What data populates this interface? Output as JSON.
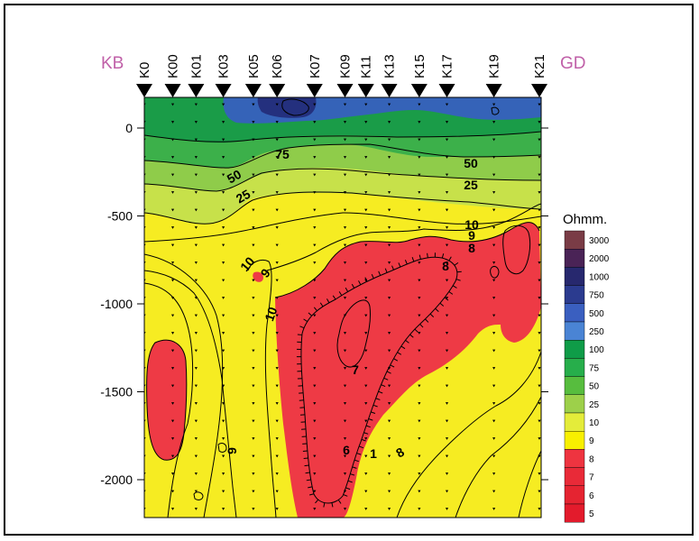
{
  "chart_data": {
    "type": "heatmap",
    "title": "",
    "xlabel": "",
    "ylabel": "",
    "end_labels": {
      "left": "KB",
      "right": "GD"
    },
    "stations": [
      "K0",
      "K00",
      "K01",
      "K03",
      "K05",
      "K06",
      "K07",
      "K09",
      "K11",
      "K13",
      "K15",
      "K17",
      "K19",
      "K21"
    ],
    "y_ticks": [
      0,
      -500,
      -1000,
      -1500,
      -2000
    ],
    "ylim": [
      -2200,
      180
    ],
    "legend": {
      "title": "Ohmm.",
      "levels": [
        "3000",
        "2000",
        "1000",
        "750",
        "500",
        "250",
        "100",
        "75",
        "50",
        "25",
        "10",
        "9",
        "8",
        "7",
        "6",
        "5"
      ],
      "colors": [
        "#7a3c46",
        "#4a2356",
        "#27286e",
        "#2b3b8f",
        "#3a5fc0",
        "#4a84d4",
        "#0f9c48",
        "#27ae4b",
        "#57bd3e",
        "#9dd04a",
        "#e4ec3a",
        "#f8f000",
        "#ee3440",
        "#e92a38",
        "#e52431",
        "#e31b2c"
      ]
    },
    "contour_labels": [
      "75",
      "50",
      "25",
      "50",
      "25",
      "10",
      "9",
      "8",
      "10",
      "9",
      "8",
      "7",
      "6",
      "1",
      "8",
      "9",
      "10"
    ],
    "colors": {
      "red": "#ee3a45",
      "yellow": "#f6ec22",
      "yellow_green": "#c7e14a",
      "light_green": "#8fcc4a",
      "green": "#3cb04a",
      "dark_green": "#1a9c48",
      "blue": "#3563b8",
      "navy": "#24307e",
      "end_label_color": "#c060a8"
    }
  }
}
